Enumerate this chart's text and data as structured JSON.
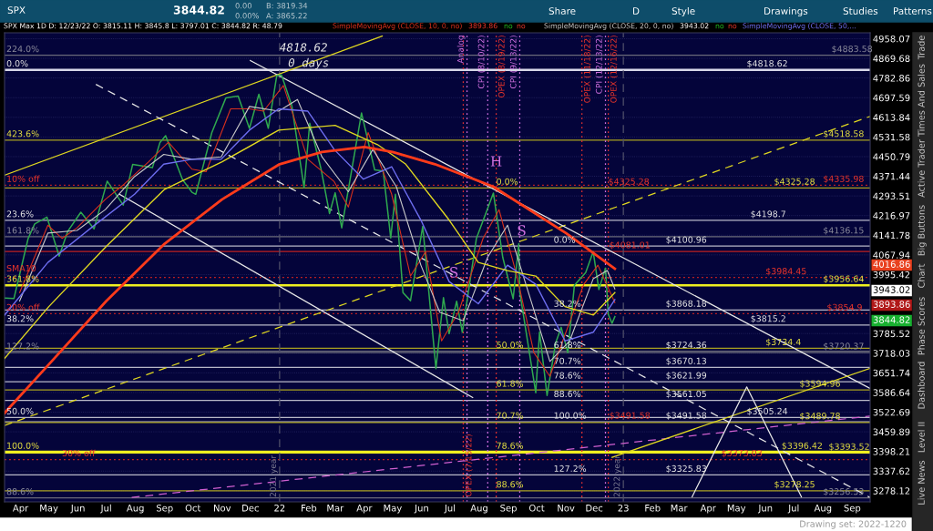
{
  "chart_data": {
    "type": "line",
    "title": "SPX Max 1D D: 12/23/22 O: 3815.11 H: 3845.8 L: 3797.01 C: 3844.82 R: 48.79",
    "log": true,
    "grid": "y",
    "legend": "top",
    "xlim": [
      "2021-03-15",
      "2023-09-20"
    ],
    "xticks": [
      {
        "value": "2021-04-01",
        "label": "Apr"
      },
      {
        "value": "2021-05-01",
        "label": "May"
      },
      {
        "value": "2021-06-01",
        "label": "Jun"
      },
      {
        "value": "2021-07-01",
        "label": "Jul"
      },
      {
        "value": "2021-08-01",
        "label": "Aug"
      },
      {
        "value": "2021-09-01",
        "label": "Sep"
      },
      {
        "value": "2021-10-01",
        "label": "Oct"
      },
      {
        "value": "2021-11-01",
        "label": "Nov"
      },
      {
        "value": "2021-12-01",
        "label": "Dec"
      },
      {
        "value": "2022-01-01",
        "label": "22"
      },
      {
        "value": "2022-02-01",
        "label": "Feb"
      },
      {
        "value": "2022-03-01",
        "label": "Mar"
      },
      {
        "value": "2022-04-01",
        "label": "Apr"
      },
      {
        "value": "2022-05-01",
        "label": "May"
      },
      {
        "value": "2022-06-01",
        "label": "Jun"
      },
      {
        "value": "2022-07-01",
        "label": "Jul"
      },
      {
        "value": "2022-08-01",
        "label": "Aug"
      },
      {
        "value": "2022-09-01",
        "label": "Sep"
      },
      {
        "value": "2022-10-01",
        "label": "Oct"
      },
      {
        "value": "2022-11-01",
        "label": "Nov"
      },
      {
        "value": "2022-12-01",
        "label": "Dec"
      },
      {
        "value": "2023-01-01",
        "label": "23"
      },
      {
        "value": "2023-02-01",
        "label": "Feb"
      },
      {
        "value": "2023-03-01",
        "label": "Mar"
      },
      {
        "value": "2023-04-01",
        "label": "Apr"
      },
      {
        "value": "2023-05-01",
        "label": "May"
      },
      {
        "value": "2023-06-01",
        "label": "Jun"
      },
      {
        "value": "2023-07-01",
        "label": "Jul"
      },
      {
        "value": "2023-08-01",
        "label": "Aug"
      },
      {
        "value": "2023-09-01",
        "label": "Sep"
      }
    ],
    "ylim": [
      3245,
      4985
    ],
    "yticks": [
      4958.07,
      4869.68,
      4782.86,
      4697.59,
      4613.84,
      4531.58,
      4450.79,
      4371.44,
      4293.51,
      4216.97,
      4141.78,
      4067.94,
      3995.42,
      3785.52,
      3718.03,
      3651.74,
      3586.64,
      3522.69,
      3459.89,
      3398.21,
      3337.62,
      3278.12
    ],
    "series": [
      {
        "color": "#2fa84f",
        "x": [
          "2021-03-16",
          "2021-03-25",
          "2021-04-09",
          "2021-04-16",
          "2021-04-29",
          "2021-05-12",
          "2021-05-21",
          "2021-06-04",
          "2021-06-18",
          "2021-07-02",
          "2021-07-19",
          "2021-07-29",
          "2021-08-19",
          "2021-08-27",
          "2021-09-02",
          "2021-09-20",
          "2021-09-30",
          "2021-10-04",
          "2021-10-21",
          "2021-11-05",
          "2021-11-18",
          "2021-11-30",
          "2021-12-10",
          "2021-12-20",
          "2021-12-29",
          "2022-01-03",
          "2022-01-14",
          "2022-01-27",
          "2022-02-02",
          "2022-02-14",
          "2022-02-23",
          "2022-03-01",
          "2022-03-08",
          "2022-03-29",
          "2022-04-12",
          "2022-04-21",
          "2022-04-29",
          "2022-05-04",
          "2022-05-12",
          "2022-05-20",
          "2022-06-02",
          "2022-06-16",
          "2022-06-24",
          "2022-06-30",
          "2022-07-08",
          "2022-07-14",
          "2022-07-29",
          "2022-08-16",
          "2022-08-26",
          "2022-09-06",
          "2022-09-12",
          "2022-09-13",
          "2022-09-30",
          "2022-10-04",
          "2022-10-12",
          "2022-10-21",
          "2022-10-27",
          "2022-11-03",
          "2022-11-10",
          "2022-11-22",
          "2022-11-30",
          "2022-12-06",
          "2022-12-13",
          "2022-12-16",
          "2022-12-20",
          "2022-12-23"
        ],
        "values": [
          3910,
          3909,
          4129,
          4185,
          4211,
          4063,
          4156,
          4230,
          4166,
          4352,
          4258,
          4419,
          4406,
          4509,
          4537,
          4358,
          4308,
          4300,
          4549,
          4697,
          4704,
          4567,
          4712,
          4568,
          4793,
          4796,
          4663,
          4326,
          4589,
          4401,
          4225,
          4306,
          4170,
          4632,
          4397,
          4393,
          4132,
          4300,
          3930,
          3901,
          4176,
          3666,
          3912,
          3785,
          3899,
          3790,
          4130,
          4305,
          4058,
          3908,
          4110,
          3932,
          3586,
          3791,
          3577,
          3752,
          3807,
          3720,
          3956,
          4003,
          4080,
          3941,
          4019,
          3852,
          3821,
          3844.82
        ]
      },
      {
        "name": "SimpleMovingAvg (CLOSE, 10, 0, no)",
        "color": "#d8301c",
        "x": [
          "2021-03-31",
          "2021-04-30",
          "2021-05-15",
          "2021-05-31",
          "2021-06-30",
          "2021-07-20",
          "2021-08-15",
          "2021-09-05",
          "2021-09-30",
          "2021-10-15",
          "2021-11-10",
          "2021-11-30",
          "2021-12-15",
          "2022-01-05",
          "2022-01-31",
          "2022-02-28",
          "2022-03-15",
          "2022-04-05",
          "2022-04-30",
          "2022-05-20",
          "2022-06-05",
          "2022-06-22",
          "2022-07-10",
          "2022-08-05",
          "2022-08-22",
          "2022-09-10",
          "2022-09-28",
          "2022-10-15",
          "2022-11-01",
          "2022-11-20",
          "2022-12-05",
          "2022-12-23"
        ],
        "values": [
          3930,
          4180,
          4130,
          4170,
          4280,
          4340,
          4430,
          4510,
          4400,
          4390,
          4650,
          4650,
          4640,
          4750,
          4440,
          4350,
          4250,
          4550,
          4300,
          3990,
          4080,
          3760,
          3860,
          4130,
          4240,
          3990,
          3720,
          3640,
          3790,
          3960,
          4030,
          3893.86
        ]
      },
      {
        "name": "SimpleMovingAvg (CLOSE, 20, 0, no)",
        "color": "#c8c8c8",
        "x": [
          "2021-03-31",
          "2021-04-30",
          "2021-05-31",
          "2021-06-30",
          "2021-07-31",
          "2021-08-31",
          "2021-09-30",
          "2021-10-31",
          "2021-11-30",
          "2021-12-31",
          "2022-01-20",
          "2022-02-15",
          "2022-03-15",
          "2022-04-10",
          "2022-05-05",
          "2022-05-31",
          "2022-06-20",
          "2022-07-15",
          "2022-08-10",
          "2022-08-31",
          "2022-09-25",
          "2022-10-15",
          "2022-11-05",
          "2022-11-30",
          "2022-12-15",
          "2022-12-23"
        ],
        "values": [
          3900,
          4150,
          4160,
          4240,
          4370,
          4460,
          4440,
          4450,
          4660,
          4640,
          4690,
          4450,
          4310,
          4480,
          4330,
          4030,
          3860,
          3830,
          4060,
          4180,
          3900,
          3690,
          3760,
          3980,
          4010,
          3943.02
        ]
      },
      {
        "name": "SimpleMovingAvg (CLOSE, 50,...",
        "color": "#6e6ef0",
        "x": [
          "2021-03-15",
          "2021-04-30",
          "2021-06-15",
          "2021-07-31",
          "2021-08-31",
          "2021-09-30",
          "2021-10-31",
          "2021-11-30",
          "2021-12-31",
          "2022-01-31",
          "2022-02-28",
          "2022-03-31",
          "2022-04-30",
          "2022-05-31",
          "2022-06-30",
          "2022-07-31",
          "2022-08-31",
          "2022-09-30",
          "2022-10-31",
          "2022-11-30",
          "2022-12-23"
        ],
        "values": [
          3850,
          4040,
          4170,
          4300,
          4420,
          4440,
          4440,
          4560,
          4650,
          4640,
          4480,
          4360,
          4410,
          4200,
          3970,
          3890,
          4030,
          3960,
          3760,
          3790,
          3905
        ]
      },
      {
        "color": "#e0d820",
        "x": [
          "2021-03-15",
          "2021-05-01",
          "2021-07-01",
          "2021-09-01",
          "2021-11-01",
          "2021-12-31",
          "2022-03-01",
          "2022-04-15",
          "2022-05-15",
          "2022-06-30",
          "2022-07-31",
          "2022-08-31",
          "2022-09-30",
          "2022-10-31",
          "2022-11-30",
          "2022-12-23"
        ],
        "values": [
          3700,
          3880,
          4100,
          4320,
          4430,
          4560,
          4580,
          4500,
          4420,
          4200,
          4040,
          4010,
          3990,
          3880,
          3850,
          3930
        ]
      },
      {
        "color": "#ff3b1a",
        "x": [
          "2021-03-15",
          "2021-05-01",
          "2021-07-01",
          "2021-09-01",
          "2021-11-01",
          "2022-01-01",
          "2022-02-15",
          "2022-04-01",
          "2022-05-01",
          "2022-06-15",
          "2022-08-16",
          "2022-11-01",
          "2022-12-23"
        ],
        "values": [
          3520,
          3680,
          3900,
          4110,
          4280,
          4420,
          4470,
          4490,
          4470,
          4420,
          4330,
          4150,
          4016.86
        ]
      },
      {
        "color": "#e0d820",
        "x": [
          "2021-03-15",
          "2022-04-20"
        ],
        "values": [
          4376,
          4970
        ]
      },
      {
        "color": "#e0d820",
        "line_style": "dashed",
        "x": [
          "2021-03-15",
          "2023-09-20"
        ],
        "values": [
          3480,
          4618
        ]
      },
      {
        "color": "#e8e8e8",
        "x": [
          "2021-12-01",
          "2023-09-20"
        ],
        "values": [
          4860,
          3600
        ]
      },
      {
        "color": "#e8e8e8",
        "x": [
          "2021-07-15",
          "2022-07-25"
        ],
        "values": [
          4300,
          3570
        ]
      },
      {
        "color": "#d060d0",
        "line_style": "dashed",
        "x": [
          "2021-07-28",
          "2023-09-20"
        ],
        "values": [
          3258,
          3510
        ]
      },
      {
        "color": "#e0d820",
        "x": [
          "2022-12-20",
          "2023-09-20"
        ],
        "values": [
          3380,
          3667
        ]
      },
      {
        "color": "#e8e8e8",
        "line_style": "dashed",
        "x": [
          "2021-06-20",
          "2023-09-20"
        ],
        "values": [
          4755,
          3258
        ]
      },
      {
        "color": "#e8e8e8",
        "x": [
          "2023-03-15",
          "2023-05-12",
          "2023-07-09"
        ],
        "values": [
          3260,
          3605,
          3260
        ]
      }
    ],
    "ref_lines": [
      {
        "axis": "y",
        "value": 4883.58,
        "color": "#6a6a7a"
      },
      {
        "axis": "y",
        "value": 4818.62,
        "color": "#d8d8e8"
      },
      {
        "axis": "y",
        "value": 4518.58,
        "color": "#a8a020"
      },
      {
        "axis": "y",
        "value": 4335.98,
        "color": "#c02020",
        "line_style": "dotted"
      },
      {
        "axis": "y",
        "value": 4325.28,
        "color": "#a8a020"
      },
      {
        "axis": "y",
        "value": 4198.7,
        "color": "#b8b8c8"
      },
      {
        "axis": "y",
        "value": 4136.15,
        "color": "#6a6a7a"
      },
      {
        "axis": "y",
        "value": 4100.96,
        "color": "#b8b8c8"
      },
      {
        "axis": "y",
        "value": 4081.01,
        "color": "#c02020"
      },
      {
        "axis": "y",
        "value": 3984.45,
        "color": "#c02020",
        "line_style": "dotted"
      },
      {
        "axis": "y",
        "value": 3956.64,
        "color": "#f0f020"
      },
      {
        "axis": "y",
        "value": 3868.18,
        "color": "#b8b8c8"
      },
      {
        "axis": "y",
        "value": 3854.9,
        "color": "#c02020",
        "line_style": "dotted"
      },
      {
        "axis": "y",
        "value": 3815.2,
        "color": "#b8b8c8"
      },
      {
        "axis": "y",
        "value": 3734.4,
        "color": "#a8a020"
      },
      {
        "axis": "y",
        "value": 3720.37,
        "color": "#6a6a7a"
      },
      {
        "axis": "y",
        "value": 3724.36,
        "color": "#6a6a7a"
      },
      {
        "axis": "y",
        "value": 3670.13,
        "color": "#b8b8c8"
      },
      {
        "axis": "y",
        "value": 3621.99,
        "color": "#b8b8c8"
      },
      {
        "axis": "y",
        "value": 3594.96,
        "color": "#a8a020"
      },
      {
        "axis": "y",
        "value": 3561.05,
        "color": "#b8b8c8"
      },
      {
        "axis": "y",
        "value": 3505.24,
        "color": "#b8b8c8"
      },
      {
        "axis": "y",
        "value": 3491.58,
        "color": "#b8b8c8"
      },
      {
        "axis": "y",
        "value": 3489.78,
        "color": "#a8a020"
      },
      {
        "axis": "y",
        "value": 3396.42,
        "color": "#f0f020"
      },
      {
        "axis": "y",
        "value": 3393.52,
        "color": "#f0f020"
      },
      {
        "axis": "y",
        "value": 3373.03,
        "color": "#c02020",
        "line_style": "dotted"
      },
      {
        "axis": "y",
        "value": 3325.83,
        "color": "#b8b8c8"
      },
      {
        "axis": "y",
        "value": 3278.25,
        "color": "#a8a020"
      },
      {
        "axis": "y",
        "value": 3256.53,
        "color": "#6a6a7a"
      },
      {
        "axis": "x",
        "value": "2022-07-15",
        "color": "#e03030",
        "line_style": "dotted"
      },
      {
        "axis": "x",
        "value": "2022-07-19",
        "color": "#d070e0",
        "line_style": "dotted"
      },
      {
        "axis": "x",
        "value": "2022-08-10",
        "color": "#d070e0",
        "line_style": "dotted"
      },
      {
        "axis": "x",
        "value": "2022-08-19",
        "color": "#e03030",
        "line_style": "dotted"
      },
      {
        "axis": "x",
        "value": "2022-09-13",
        "color": "#d070e0",
        "line_style": "dotted"
      },
      {
        "axis": "x",
        "value": "2022-11-18",
        "color": "#e03030",
        "line_style": "dotted"
      },
      {
        "axis": "x",
        "value": "2022-12-13",
        "color": "#d070e0",
        "line_style": "dotted"
      },
      {
        "axis": "x",
        "value": "2022-12-16",
        "color": "#e03030",
        "line_style": "dotted"
      },
      {
        "axis": "x",
        "value": "2022-01-01",
        "color": "#50506a",
        "line_style": "dashed",
        "label": "2021 year"
      },
      {
        "axis": "x",
        "value": "2023-01-01",
        "color": "#50506a",
        "line_style": "dashed",
        "label": "2022 year"
      }
    ],
    "annotations": [
      "SPX",
      "3844.82",
      "0.00",
      "0.00%",
      "B: 3819.34",
      "A: 3865.22",
      "Share",
      "D",
      "Style",
      "Drawings",
      "Studies",
      "Patterns",
      "3893.86",
      "no",
      "no",
      "3943.02",
      "no",
      "no",
      "Trade",
      "Times And Sales",
      "Active Trader",
      "Big Buttons",
      "Chart",
      "Phase Scores",
      "Dashboard",
      "Level II",
      "Live News",
      "Drawing set: 2022-1220",
      "4016.86",
      "3943.02",
      "3893.86",
      "3844.82",
      {
        "text": "224.0%",
        "x": "2021-03-17",
        "y": 4883.58
      },
      {
        "text": "0.0%",
        "x": "2021-03-17",
        "y": 4818.62
      },
      {
        "text": "423.6%",
        "x": "2021-03-17",
        "y": 4518.58
      },
      {
        "text": "10% off",
        "x": "2021-03-17",
        "y": 4335.98
      },
      {
        "text": "23.6%",
        "x": "2021-03-17",
        "y": 4198.7
      },
      {
        "text": "161.8%",
        "x": "2021-03-17",
        "y": 4136.15
      },
      {
        "text": "SMA10",
        "x": "2021-03-17",
        "y": 3995
      },
      {
        "text": "361.8%",
        "x": "2021-03-17",
        "y": 3956.64
      },
      {
        "text": "20% off",
        "x": "2021-03-17",
        "y": 3854.9
      },
      {
        "text": "38.2%",
        "x": "2021-03-17",
        "y": 3815.2
      },
      {
        "text": "127.2%",
        "x": "2021-03-17",
        "y": 3720.37
      },
      {
        "text": "50.0%",
        "x": "2021-03-17",
        "y": 3505.24
      },
      {
        "text": "100.0%",
        "x": "2021-03-17",
        "y": 3396.42
      },
      {
        "text": "30% off",
        "x": "2021-05-15",
        "y": 3373.03
      },
      {
        "text": "88.6%",
        "x": "2021-03-17",
        "y": 3256.53
      },
      {
        "text": "4818.62",
        "x": "2022-01-01",
        "y": 4890
      },
      {
        "text": "0 days",
        "x": "2022-01-10",
        "y": 4822
      },
      {
        "text": "H",
        "x": "2022-08-19",
        "y": 4400
      },
      {
        "text": "S",
        "x": "2022-09-15",
        "y": 4130
      },
      {
        "text": "S",
        "x": "2022-07-05",
        "y": 3975
      },
      {
        "text": "0.0%",
        "x": "2022-08-19",
        "y": 4325.28
      },
      {
        "text": "$4325.28",
        "x": "2022-12-16",
        "y": 4325.28
      },
      {
        "text": "0.0%",
        "x": "2022-10-19",
        "y": 4100.96
      },
      {
        "text": "$4081.01",
        "x": "2022-12-17",
        "y": 4081.01
      },
      {
        "text": "38.2%",
        "x": "2022-10-19",
        "y": 3868.18
      },
      {
        "text": "50.0%",
        "x": "2022-08-19",
        "y": 3724.36
      },
      {
        "text": "61.8%",
        "x": "2022-10-19",
        "y": 3724.36
      },
      {
        "text": "70.7%",
        "x": "2022-10-19",
        "y": 3670.13
      },
      {
        "text": "78.6%",
        "x": "2022-10-19",
        "y": 3621.99
      },
      {
        "text": "88.6%",
        "x": "2022-10-19",
        "y": 3561.05
      },
      {
        "text": "61.8%",
        "x": "2022-08-19",
        "y": 3594.96
      },
      {
        "text": "70.7%",
        "x": "2022-08-19",
        "y": 3491.58
      },
      {
        "text": "100.0%",
        "x": "2022-10-19",
        "y": 3491.58
      },
      {
        "text": "$3491.58",
        "x": "2022-12-17",
        "y": 3491.58
      },
      {
        "text": "78.6%",
        "x": "2022-08-19",
        "y": 3396.42
      },
      {
        "text": "127.2%",
        "x": "2022-10-19",
        "y": 3325.83
      },
      {
        "text": "88.6%",
        "x": "2022-08-19",
        "y": 3278.25
      },
      {
        "text": "$4883.58",
        "x": "2023-08-10",
        "y": 4883.58
      },
      {
        "text": "$4818.62",
        "x": "2023-05-12",
        "y": 4818.62
      },
      {
        "text": "$4518.58",
        "x": "2023-08-01",
        "y": 4518.58
      },
      {
        "text": "$4335.98",
        "x": "2023-08-01",
        "y": 4335.98
      },
      {
        "text": "$4325.28",
        "x": "2023-06-10",
        "y": 4325.28
      },
      {
        "text": "$4198.7",
        "x": "2023-05-16",
        "y": 4198.7
      },
      {
        "text": "$4136.15",
        "x": "2023-08-01",
        "y": 4136.15
      },
      {
        "text": "$4100.96",
        "x": "2023-02-15",
        "y": 4100.96
      },
      {
        "text": "$3984.45",
        "x": "2023-06-01",
        "y": 3984.45
      },
      {
        "text": "$3956.64",
        "x": "2023-08-01",
        "y": 3956.64
      },
      {
        "text": "$3868.18",
        "x": "2023-02-15",
        "y": 3868.18
      },
      {
        "text": "$3854.9",
        "x": "2023-08-05",
        "y": 3854.9
      },
      {
        "text": "$3815.2",
        "x": "2023-05-16",
        "y": 3815.2
      },
      {
        "text": "$3734.4",
        "x": "2023-06-01",
        "y": 3734.4
      },
      {
        "text": "$3720.37",
        "x": "2023-08-01",
        "y": 3720.37
      },
      {
        "text": "$3724.36",
        "x": "2023-02-15",
        "y": 3724.36
      },
      {
        "text": "$3670.13",
        "x": "2023-02-15",
        "y": 3670.13
      },
      {
        "text": "$3621.99",
        "x": "2023-02-15",
        "y": 3621.99
      },
      {
        "text": "$3561.05",
        "x": "2023-02-15",
        "y": 3561.05
      },
      {
        "text": "$3594.96",
        "x": "2023-07-07",
        "y": 3594.96
      },
      {
        "text": "$3505.24",
        "x": "2023-05-12",
        "y": 3505.24
      },
      {
        "text": "$3491.58",
        "x": "2023-02-15",
        "y": 3491.58
      },
      {
        "text": "$3489.78",
        "x": "2023-07-07",
        "y": 3489.78
      },
      {
        "text": "$3396.42",
        "x": "2023-06-18",
        "y": 3396.42
      },
      {
        "text": "$3393.52",
        "x": "2023-08-07",
        "y": 3393.52
      },
      {
        "text": "$3373.03",
        "x": "2023-04-15",
        "y": 3373.03
      },
      {
        "text": "$3325.83",
        "x": "2023-02-15",
        "y": 3325.83
      },
      {
        "text": "$3278.25",
        "x": "2023-06-10",
        "y": 3278.25
      },
      {
        "text": "$3256.53",
        "x": "2023-08-01",
        "y": 3256.53
      },
      {
        "text": "Analog",
        "x": "2022-07-19",
        "y": 4975
      },
      {
        "text": "CPI (8/10/22)",
        "x": "2022-08-10",
        "y": 4975
      },
      {
        "text": "OPEX (8/19/22)",
        "x": "2022-08-19",
        "y": 4975
      },
      {
        "text": "CPI (9/13/22)",
        "x": "2022-09-13",
        "y": 4975
      },
      {
        "text": "OPEX (11/18/22)",
        "x": "2022-11-18",
        "y": 4975
      },
      {
        "text": "CPI (12/13/22)",
        "x": "2022-12-13",
        "y": 4975
      },
      {
        "text": "OPEX (12/16/22)",
        "x": "2022-12-16",
        "y": 4975
      },
      {
        "text": "OPEX (7/15/22)",
        "x": "2022-07-15",
        "y": 3260
      }
    ]
  }
}
